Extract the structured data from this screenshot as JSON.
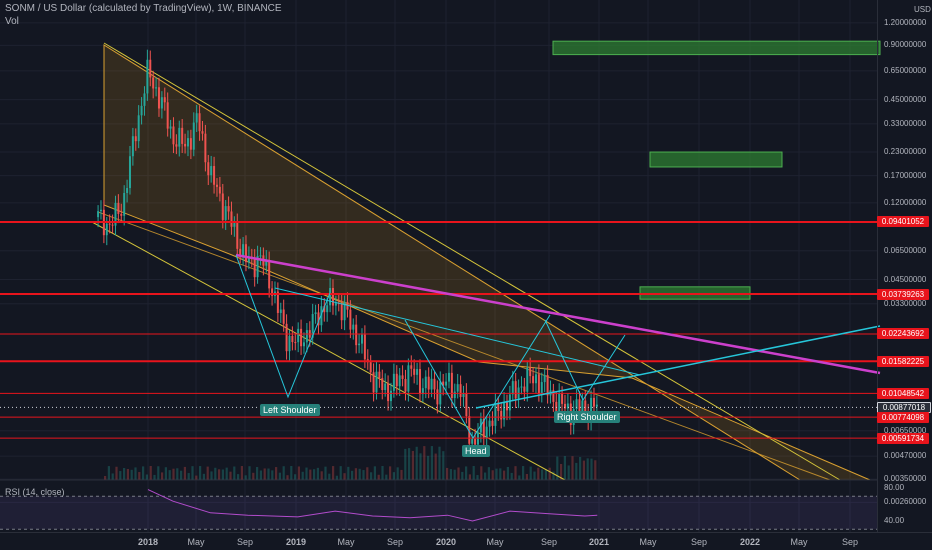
{
  "header": {
    "title": "SONM / US Dollar (calculated by TradingView), 1W, BINANCE",
    "volume_label": "Vol"
  },
  "axis": {
    "currency": "USD",
    "x_ticks": [
      "2018",
      "May",
      "Sep",
      "2019",
      "May",
      "Sep",
      "2020",
      "May",
      "Sep",
      "2021",
      "May",
      "Sep",
      "2022",
      "May",
      "Sep"
    ]
  },
  "colors": {
    "background": "#131722",
    "level_line": "#e8141c",
    "trend_line": "#cc40cc",
    "support_line": "#26c6da",
    "channel_line": "#d4c43a",
    "target_box": "#2e7d32",
    "pattern_label": "#26807a",
    "up_candle": "#26a69a",
    "down_candle": "#ef5350"
  },
  "chart_data": [
    {
      "type": "line",
      "title": "SONM / US Dollar (calculated by TradingView), 1W, BINANCE",
      "scale": "log",
      "ylim": [
        0.0021,
        2.0
      ],
      "y_ticks": [
        1.2,
        0.9,
        0.65,
        0.45,
        0.33,
        0.23,
        0.17,
        0.12,
        0.065,
        0.045,
        0.033,
        0.0065,
        0.0047,
        0.0035,
        0.0026
      ],
      "price_labels": [
        "0.09401052",
        "0.03739263",
        "0.02243692",
        "0.01582225",
        "0.01048542",
        "0.00877018",
        "0.00774098",
        "0.00591734"
      ],
      "horizontal_levels": [
        0.09401052,
        0.03739263,
        0.02243692,
        0.01582225,
        0.01048542,
        0.00774098,
        0.00591734
      ],
      "current_price": 0.00877018,
      "annotations": [
        "Left Shoulder",
        "Head",
        "Right Shoulder"
      ],
      "series": [
        {
          "x": [
            "2017-09",
            "2017-10",
            "2017-11",
            "2017-12",
            "2018-01",
            "2018-02",
            "2018-03",
            "2018-04",
            "2018-05",
            "2018-06",
            "2018-07",
            "2018-08",
            "2018-09",
            "2018-10",
            "2018-11",
            "2018-12",
            "2019-01",
            "2019-02",
            "2019-03",
            "2019-04",
            "2019-05",
            "2019-06",
            "2019-07",
            "2019-08",
            "2019-09",
            "2019-10",
            "2019-11",
            "2019-12",
            "2020-01",
            "2020-02",
            "2020-03",
            "2020-04",
            "2020-05",
            "2020-06",
            "2020-07",
            "2020-08",
            "2020-09",
            "2020-10",
            "2020-11",
            "2020-12",
            "2021-01"
          ],
          "values": [
            0.1,
            0.09,
            0.12,
            0.3,
            0.65,
            0.45,
            0.28,
            0.25,
            0.35,
            0.17,
            0.12,
            0.08,
            0.055,
            0.06,
            0.04,
            0.022,
            0.02,
            0.024,
            0.032,
            0.035,
            0.028,
            0.02,
            0.013,
            0.011,
            0.012,
            0.014,
            0.012,
            0.011,
            0.012,
            0.011,
            0.0055,
            0.007,
            0.008,
            0.01,
            0.012,
            0.013,
            0.011,
            0.009,
            0.0085,
            0.0088,
            0.0088
          ]
        }
      ],
      "targets": [
        {
          "low": 0.8,
          "high": 0.95
        },
        {
          "low": 0.19,
          "high": 0.23
        },
        {
          "low": 0.035,
          "high": 0.041
        }
      ]
    },
    {
      "type": "line",
      "title": "RSI (14, close)",
      "ylim": [
        30,
        90
      ],
      "y_ticks": [
        80.0,
        40.0
      ],
      "series": [
        {
          "x": [
            "2018-01",
            "2018-03",
            "2018-06",
            "2018-09",
            "2019-01",
            "2019-04",
            "2019-07",
            "2019-10",
            "2020-01",
            "2020-03",
            "2020-06",
            "2020-09",
            "2020-12",
            "2021-01"
          ],
          "values": [
            78,
            64,
            50,
            47,
            45,
            52,
            46,
            44,
            47,
            40,
            52,
            49,
            46,
            47
          ]
        }
      ]
    }
  ]
}
